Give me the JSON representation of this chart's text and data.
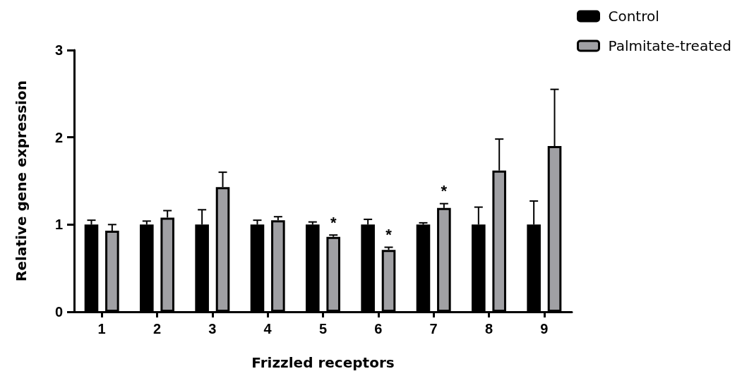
{
  "chart_data": {
    "type": "bar",
    "xlabel": "Frizzled receptors",
    "ylabel": "Relative gene expression",
    "categories": [
      "1",
      "2",
      "3",
      "4",
      "5",
      "6",
      "7",
      "8",
      "9"
    ],
    "series": [
      {
        "name": "Control",
        "color": "#000000",
        "values": [
          1,
          1,
          1,
          1,
          1,
          1,
          1,
          1,
          1
        ],
        "errors": [
          [
            1,
            1.05
          ],
          [
            1,
            1.04
          ],
          [
            1,
            1.17
          ],
          [
            1,
            1.05
          ],
          [
            1,
            1.03
          ],
          [
            1,
            1.06
          ],
          [
            1,
            1.02
          ],
          [
            1,
            1.2
          ],
          [
            1,
            1.27
          ]
        ]
      },
      {
        "name": "Palmitate-treated",
        "color": "#a0a0a4",
        "values": [
          0.93,
          1.08,
          1.43,
          1.05,
          0.86,
          0.71,
          1.19,
          1.62,
          1.9
        ],
        "value_labels": [
          null,
          null,
          null,
          null,
          "*",
          "*",
          "*",
          null,
          null
        ],
        "errors": [
          [
            0.93,
            1
          ],
          [
            1.08,
            1.16
          ],
          [
            1.43,
            1.6
          ],
          [
            1.05,
            1.09
          ],
          [
            0.86,
            0.88
          ],
          [
            0.71,
            0.74
          ],
          [
            1.19,
            1.24
          ],
          [
            1.62,
            1.98
          ],
          [
            1.9,
            2.55
          ]
        ]
      }
    ],
    "ylim": [
      0,
      3
    ],
    "yticks": [
      0,
      1,
      2,
      3
    ],
    "grid": false,
    "legend": "top right"
  }
}
